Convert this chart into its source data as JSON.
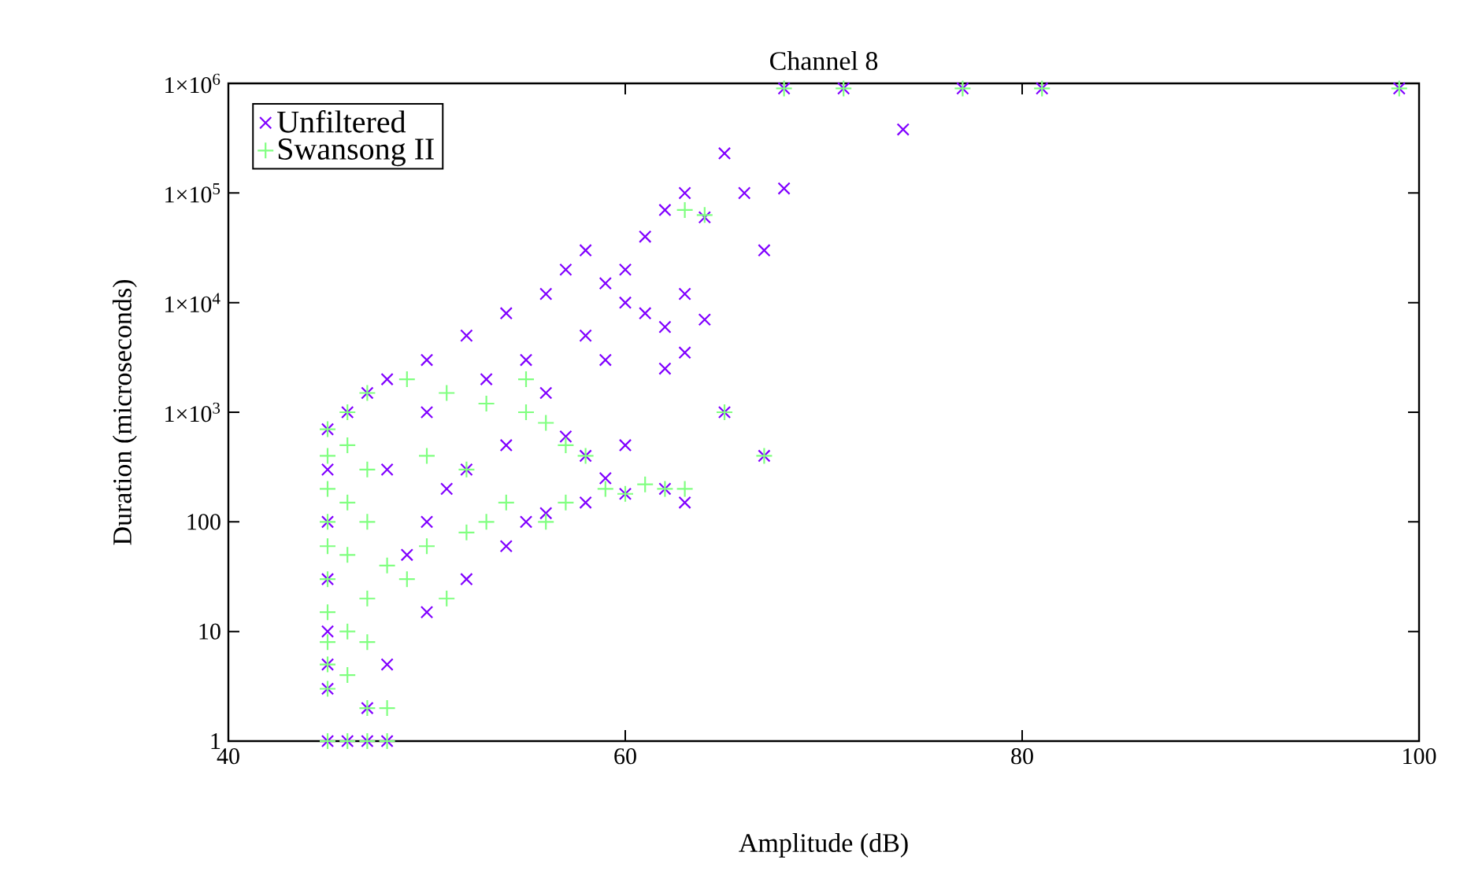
{
  "chart_data": {
    "type": "scatter",
    "title": "Channel 8",
    "xlabel": "Amplitude (dB)",
    "ylabel": "Duration (microseconds)",
    "log": "y",
    "legend": "top left",
    "grid": false,
    "xlim": [
      40,
      100
    ],
    "xticks": [
      40,
      60,
      80,
      100
    ],
    "ylim": [
      1,
      1000000
    ],
    "yticks": [
      {
        "value": 1,
        "label": "1"
      },
      {
        "value": 10,
        "label": "10"
      },
      {
        "value": 100,
        "label": "100"
      },
      {
        "value": 1000,
        "label": "1×10$^{3}$"
      },
      {
        "value": 10000,
        "label": "1×10$^{4}$"
      },
      {
        "value": 100000,
        "label": "1×10$^{5}$"
      },
      {
        "value": 1000000,
        "label": "1×10$^{6}$"
      }
    ],
    "series": [
      {
        "name": "Unfiltered",
        "color": "#8000ff",
        "marker": "cross",
        "x": [
          45,
          46,
          47,
          48,
          45,
          45,
          45,
          45,
          45,
          45,
          45,
          46,
          47,
          48,
          50,
          52,
          54,
          56,
          57,
          58,
          59,
          60,
          61,
          62,
          63,
          64,
          65,
          66,
          67,
          68,
          74,
          68,
          71,
          77,
          81,
          99,
          63,
          64,
          63,
          65,
          67,
          63,
          62,
          60,
          58,
          56,
          55,
          50,
          52,
          54,
          48,
          47,
          50,
          50,
          52,
          53,
          55,
          56,
          58,
          59,
          60,
          61,
          62,
          62,
          54,
          57,
          58,
          59,
          60,
          48,
          49,
          51
        ],
        "values": [
          1,
          1,
          1,
          1,
          3,
          5,
          10,
          30,
          100,
          300,
          700,
          1000,
          1500,
          2000,
          3000,
          5000,
          8000,
          12000,
          20000,
          30000,
          15000,
          20000,
          40000,
          70000,
          100000,
          60000,
          230000,
          100000,
          30000,
          110000,
          380000,
          900000,
          900000,
          900000,
          900000,
          900000,
          3500,
          7000,
          12000,
          1000,
          400,
          150,
          200,
          180,
          150,
          120,
          100,
          15,
          30,
          60,
          5,
          2,
          100,
          1000,
          300,
          2000,
          3000,
          1500,
          5000,
          3000,
          10000,
          8000,
          2500,
          6000,
          500,
          600,
          400,
          250,
          500,
          300,
          50,
          200
        ]
      },
      {
        "name": "Swansong II",
        "color": "#80ff80",
        "marker": "plus",
        "x": [
          45,
          46,
          47,
          48,
          45,
          45,
          45,
          45,
          45,
          45,
          45,
          45,
          45,
          45,
          46,
          46,
          46,
          46,
          46,
          46,
          47,
          47,
          47,
          47,
          47,
          47,
          48,
          49,
          51,
          53,
          55,
          56,
          57,
          58,
          59,
          60,
          61,
          62,
          63,
          50,
          52,
          54,
          53,
          50,
          52,
          49,
          51,
          48,
          55,
          56,
          57,
          63,
          64,
          65,
          67,
          68,
          71,
          77,
          81,
          99
        ],
        "values": [
          1,
          1,
          1,
          1,
          3,
          5,
          8,
          15,
          30,
          60,
          100,
          200,
          400,
          700,
          4,
          10,
          50,
          150,
          500,
          1000,
          2,
          8,
          20,
          100,
          300,
          1500,
          2,
          2000,
          1500,
          1200,
          2000,
          800,
          500,
          400,
          200,
          180,
          220,
          200,
          200,
          400,
          300,
          150,
          100,
          60,
          80,
          30,
          20,
          40,
          1000,
          100,
          150,
          70000,
          63000,
          1000,
          400,
          900000,
          900000,
          900000,
          900000,
          900000
        ]
      }
    ]
  }
}
